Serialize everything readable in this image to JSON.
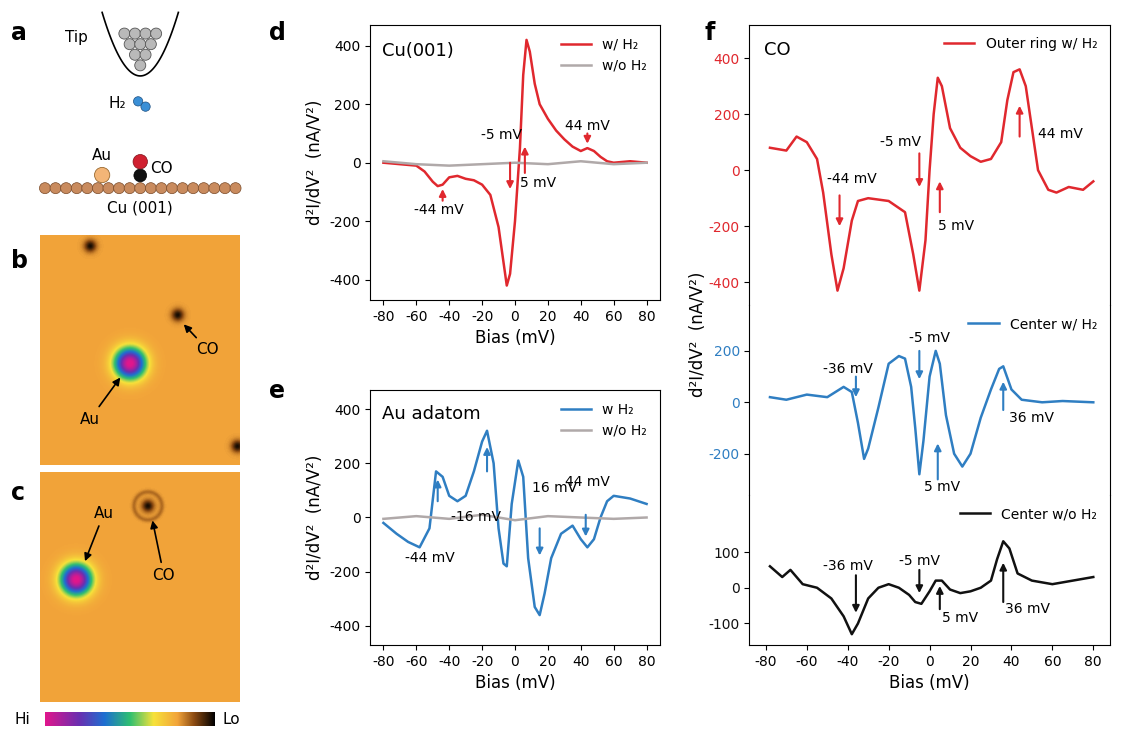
{
  "panel_labels": [
    "a",
    "b",
    "c",
    "d",
    "e",
    "f"
  ],
  "diagram": {
    "tip": "Tip",
    "molecule": "H₂",
    "adatom": "Au",
    "adsorbate": "CO",
    "substrate": "Cu (001)"
  },
  "images": [
    {
      "adatom": "Au",
      "adsorbate": "CO"
    },
    {
      "adatom": "Au",
      "adsorbate": "CO"
    }
  ],
  "colorbar": {
    "high": "Hi",
    "low": "Lo"
  },
  "chart_data": [
    {
      "type": "line",
      "title": "Cu(001)",
      "xlabel": "Bias (mV)",
      "ylabel": "d²I/dV²  (nA/V²)",
      "xlim": [
        -88,
        88
      ],
      "xticks": [
        -80,
        -60,
        -40,
        -20,
        0,
        20,
        40,
        60,
        80
      ],
      "ylim": [
        -470,
        470
      ],
      "yticks": [
        -400,
        -200,
        0,
        200,
        400
      ],
      "legend": "upper right",
      "series": [
        {
          "name": "w/ H₂",
          "color": "#e0282e",
          "x": [
            -80,
            -70,
            -60,
            -55,
            -50,
            -47,
            -44,
            -40,
            -35,
            -30,
            -25,
            -20,
            -15,
            -10,
            -7,
            -5,
            -3,
            0,
            3,
            5,
            7,
            9,
            12,
            15,
            20,
            25,
            30,
            35,
            40,
            44,
            48,
            52,
            56,
            60,
            70,
            80
          ],
          "values": [
            0,
            -5,
            -10,
            -30,
            -65,
            -80,
            -75,
            -50,
            -45,
            -55,
            -60,
            -75,
            -110,
            -220,
            -340,
            -420,
            -380,
            -200,
            50,
            300,
            420,
            380,
            270,
            200,
            150,
            110,
            80,
            55,
            40,
            50,
            40,
            20,
            5,
            0,
            5,
            0
          ]
        },
        {
          "name": "w/o H₂",
          "color": "#b0a9a9",
          "x": [
            -80,
            -60,
            -40,
            -20,
            0,
            20,
            40,
            60,
            80
          ],
          "values": [
            5,
            -5,
            -10,
            -5,
            0,
            -5,
            5,
            -5,
            0
          ]
        }
      ],
      "annotations": [
        {
          "text": "-44 mV",
          "x": -46,
          "y": -160
        },
        {
          "text": "-5 mV",
          "x": -8,
          "y": 95
        },
        {
          "text": "5 mV",
          "x": 14,
          "y": -70
        },
        {
          "text": "44 mV",
          "x": 44,
          "y": 125
        }
      ],
      "arrows": [
        {
          "from": [
            -44,
            -130
          ],
          "to": [
            -44,
            -90
          ]
        },
        {
          "from": [
            -3,
            0
          ],
          "to": [
            -3,
            -90
          ]
        },
        {
          "from": [
            6,
            -35
          ],
          "to": [
            6,
            55
          ]
        },
        {
          "from": [
            44,
            100
          ],
          "to": [
            44,
            65
          ]
        }
      ]
    },
    {
      "type": "line",
      "title": "Au adatom",
      "xlabel": "Bias (mV)",
      "ylabel": "d²I/dV²  (nA/V²)",
      "xlim": [
        -88,
        88
      ],
      "xticks": [
        -80,
        -60,
        -40,
        -20,
        0,
        20,
        40,
        60,
        80
      ],
      "ylim": [
        -470,
        470
      ],
      "yticks": [
        -400,
        -200,
        0,
        200,
        400
      ],
      "legend": "upper right",
      "series": [
        {
          "name": "w H₂",
          "color": "#2f7ec2",
          "x": [
            -80,
            -78,
            -72,
            -65,
            -58,
            -52,
            -48,
            -44,
            -40,
            -35,
            -30,
            -25,
            -20,
            -17,
            -13,
            -10,
            -7,
            -5,
            -2,
            2,
            5,
            8,
            12,
            15,
            18,
            22,
            28,
            35,
            40,
            44,
            48,
            52,
            56,
            60,
            70,
            80
          ],
          "values": [
            -20,
            -30,
            -60,
            -90,
            -110,
            -40,
            170,
            150,
            80,
            60,
            80,
            170,
            280,
            320,
            200,
            -40,
            -170,
            -180,
            50,
            210,
            150,
            -150,
            -330,
            -360,
            -280,
            -150,
            -60,
            -30,
            -80,
            -110,
            -80,
            0,
            60,
            80,
            70,
            50
          ]
        },
        {
          "name": "w/o H₂",
          "color": "#b0a9a9",
          "x": [
            -80,
            -60,
            -40,
            -20,
            0,
            20,
            40,
            60,
            80
          ],
          "values": [
            -5,
            5,
            -5,
            10,
            -10,
            5,
            0,
            -5,
            0
          ]
        }
      ],
      "annotations": [
        {
          "text": "-44 mV",
          "x": -52,
          "y": -150
        },
        {
          "text": "-16 mV",
          "x": -24,
          "y": 0
        },
        {
          "text": "16 mV",
          "x": 24,
          "y": 110
        },
        {
          "text": "44 mV",
          "x": 44,
          "y": 130
        }
      ],
      "arrows": [
        {
          "from": [
            -47,
            60
          ],
          "to": [
            -47,
            140
          ]
        },
        {
          "from": [
            -17,
            170
          ],
          "to": [
            -17,
            260
          ]
        },
        {
          "from": [
            15,
            -40
          ],
          "to": [
            15,
            -140
          ]
        },
        {
          "from": [
            43,
            10
          ],
          "to": [
            43,
            -70
          ]
        }
      ]
    },
    {
      "type": "line",
      "title": "CO",
      "ylabel": "d²I/dV²  (nA/V²)",
      "tick_labels": "y",
      "xlim": [
        -88,
        88
      ],
      "xticks": [
        -80,
        -60,
        -40,
        -20,
        0,
        20,
        40,
        60,
        80
      ],
      "ylim": [
        -480,
        520
      ],
      "yticks": [
        -400,
        -200,
        0,
        200,
        400
      ],
      "legend": "upper right",
      "series": [
        {
          "name": "Outer ring w/ H₂",
          "color": "#e0282e",
          "x": [
            -78,
            -70,
            -65,
            -60,
            -55,
            -52,
            -48,
            -45,
            -42,
            -38,
            -35,
            -30,
            -20,
            -12,
            -8,
            -5,
            -2,
            0,
            2,
            4,
            6,
            10,
            15,
            20,
            25,
            30,
            35,
            38,
            41,
            44,
            47,
            50,
            53,
            58,
            62,
            68,
            75,
            80
          ],
          "values": [
            80,
            70,
            120,
            100,
            40,
            -80,
            -300,
            -430,
            -350,
            -180,
            -110,
            -100,
            -110,
            -150,
            -300,
            -430,
            -250,
            0,
            200,
            330,
            300,
            150,
            80,
            50,
            30,
            40,
            100,
            250,
            350,
            360,
            300,
            150,
            0,
            -70,
            -80,
            -60,
            -70,
            -40
          ]
        }
      ],
      "annotations": [
        {
          "text": "-44 mV",
          "x": -38,
          "y": -30
        },
        {
          "text": "-5 mV",
          "x": -14,
          "y": 100
        },
        {
          "text": "5 mV",
          "x": 13,
          "y": -200
        },
        {
          "text": "44 mV",
          "x": 64,
          "y": 130
        }
      ],
      "arrows": [
        {
          "from": [
            -44,
            -90
          ],
          "to": [
            -44,
            -200
          ]
        },
        {
          "from": [
            -5,
            60
          ],
          "to": [
            -5,
            -60
          ]
        },
        {
          "from": [
            5,
            -150
          ],
          "to": [
            5,
            -40
          ]
        },
        {
          "from": [
            44,
            120
          ],
          "to": [
            44,
            230
          ]
        }
      ]
    },
    {
      "type": "line",
      "tick_labels": "y",
      "xlim": [
        -88,
        88
      ],
      "xticks": [
        -80,
        -60,
        -40,
        -20,
        0,
        20,
        40,
        60,
        80
      ],
      "ylim": [
        -360,
        380
      ],
      "yticks": [
        -200,
        0,
        200
      ],
      "legend": "upper right",
      "series": [
        {
          "name": "Center w/ H₂",
          "color": "#2f7ec2",
          "x": [
            -78,
            -70,
            -60,
            -50,
            -42,
            -38,
            -35,
            -32,
            -30,
            -25,
            -20,
            -15,
            -12,
            -9,
            -7,
            -5,
            -3,
            0,
            3,
            5,
            8,
            12,
            16,
            20,
            25,
            30,
            34,
            36,
            40,
            45,
            55,
            65,
            80
          ],
          "values": [
            20,
            10,
            30,
            20,
            60,
            40,
            -80,
            -220,
            -180,
            -20,
            150,
            180,
            170,
            60,
            -100,
            -280,
            -150,
            100,
            200,
            150,
            -50,
            -200,
            -250,
            -200,
            -60,
            50,
            130,
            140,
            50,
            10,
            0,
            5,
            0
          ]
        }
      ],
      "annotations": [
        {
          "text": "-36 mV",
          "x": -40,
          "y": 130
        },
        {
          "text": "-5 mV",
          "x": 0,
          "y": 250
        },
        {
          "text": "5 mV",
          "x": 6,
          "y": -330
        },
        {
          "text": "36 mV",
          "x": 50,
          "y": -60
        }
      ],
      "arrows": [
        {
          "from": [
            -36,
            100
          ],
          "to": [
            -36,
            20
          ]
        },
        {
          "from": [
            -5,
            200
          ],
          "to": [
            -5,
            90
          ]
        },
        {
          "from": [
            4,
            -300
          ],
          "to": [
            4,
            -160
          ]
        },
        {
          "from": [
            36,
            -30
          ],
          "to": [
            36,
            80
          ]
        }
      ]
    },
    {
      "type": "line",
      "xlabel": "Bias (mV)",
      "xlim": [
        -88,
        88
      ],
      "xticks": [
        -80,
        -60,
        -40,
        -20,
        0,
        20,
        40,
        60,
        80
      ],
      "ylim": [
        -160,
        260
      ],
      "yticks": [
        -100,
        0,
        100
      ],
      "legend": "upper right",
      "series": [
        {
          "name": "Center w/o H₂",
          "color": "#111111",
          "x": [
            -78,
            -72,
            -68,
            -62,
            -55,
            -48,
            -42,
            -38,
            -35,
            -30,
            -25,
            -20,
            -15,
            -10,
            -7,
            -4,
            0,
            3,
            6,
            10,
            15,
            20,
            25,
            30,
            33,
            36,
            39,
            43,
            50,
            60,
            70,
            80
          ],
          "values": [
            60,
            30,
            50,
            10,
            0,
            -30,
            -80,
            -130,
            -100,
            -30,
            0,
            10,
            0,
            -20,
            -40,
            -45,
            -10,
            20,
            20,
            -5,
            -15,
            -10,
            0,
            20,
            80,
            130,
            110,
            40,
            20,
            10,
            20,
            30
          ]
        }
      ],
      "annotations": [
        {
          "text": "-36 mV",
          "x": -40,
          "y": 60
        },
        {
          "text": "-5 mV",
          "x": -5,
          "y": 75
        },
        {
          "text": "5 mV",
          "x": 15,
          "y": -85
        },
        {
          "text": "36 mV",
          "x": 48,
          "y": -60
        }
      ],
      "arrows": [
        {
          "from": [
            -36,
            35
          ],
          "to": [
            -36,
            -70
          ]
        },
        {
          "from": [
            -5,
            50
          ],
          "to": [
            -5,
            -15
          ]
        },
        {
          "from": [
            5,
            -60
          ],
          "to": [
            5,
            5
          ]
        },
        {
          "from": [
            36,
            -40
          ],
          "to": [
            36,
            70
          ]
        }
      ]
    }
  ]
}
